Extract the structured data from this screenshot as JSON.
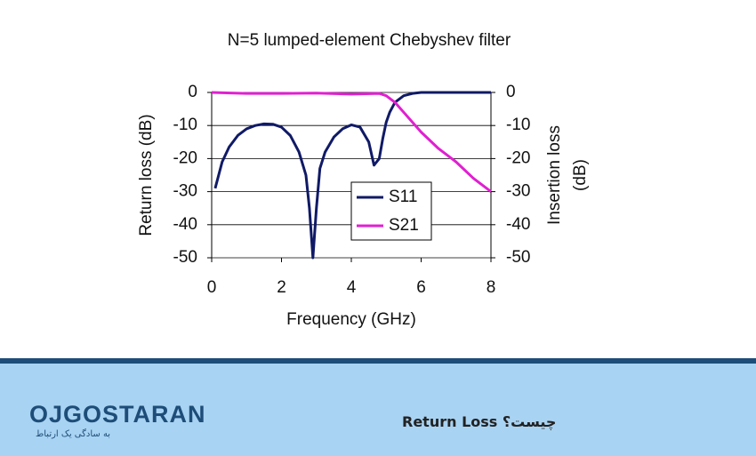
{
  "chart_data": {
    "type": "line",
    "title": "N=5 lumped-element Chebyshev filter",
    "x_label": "Frequency (GHz)",
    "y_label": "Return loss (dB)",
    "y2_label": "Insertion loss",
    "y2_label_unit": "(dB)",
    "xlim": [
      0,
      8
    ],
    "xticks": [
      0,
      2,
      4,
      6,
      8
    ],
    "ylim": [
      -50,
      0
    ],
    "yticks": [
      0,
      -10,
      -20,
      -30,
      -40,
      -50
    ],
    "y2lim": [
      -50,
      0
    ],
    "y2ticks": [
      0,
      -10,
      -20,
      -30,
      -40,
      -50
    ],
    "grid": true,
    "legend": "center",
    "series": [
      {
        "name": "S11",
        "color": "#101a66",
        "x": [
          0.1,
          0.3,
          0.5,
          0.75,
          1,
          1.25,
          1.5,
          1.75,
          2,
          2.25,
          2.5,
          2.7,
          2.8,
          2.9,
          3.0,
          3.1,
          3.25,
          3.5,
          3.75,
          4,
          4.25,
          4.5,
          4.65,
          4.8,
          4.9,
          5.0,
          5.1,
          5.25,
          5.5,
          5.75,
          6,
          7,
          8
        ],
        "values": [
          -29,
          -21,
          -16.5,
          -13,
          -11,
          -10,
          -9.5,
          -9.6,
          -10.5,
          -13,
          -18,
          -25,
          -35,
          -50,
          -35,
          -23,
          -18,
          -13.5,
          -11,
          -9.8,
          -10.5,
          -15,
          -22,
          -20,
          -14,
          -9,
          -6,
          -3,
          -1,
          -0.3,
          0,
          0,
          0
        ]
      },
      {
        "name": "S21",
        "color": "#e020d0",
        "axis": "y2",
        "x": [
          0,
          1,
          2,
          3,
          4,
          4.8,
          5,
          5.25,
          5.5,
          6,
          6.5,
          7,
          7.5,
          8
        ],
        "values": [
          0,
          -0.3,
          -0.3,
          -0.2,
          -0.5,
          -0.3,
          -1,
          -3,
          -6,
          -12,
          -17,
          -21,
          -26,
          -30
        ]
      }
    ]
  },
  "footer": {
    "logo": "OJGOSTARAN",
    "tagline": "به سادگی یک ارتباط",
    "caption": "Return Loss چیست؟"
  }
}
